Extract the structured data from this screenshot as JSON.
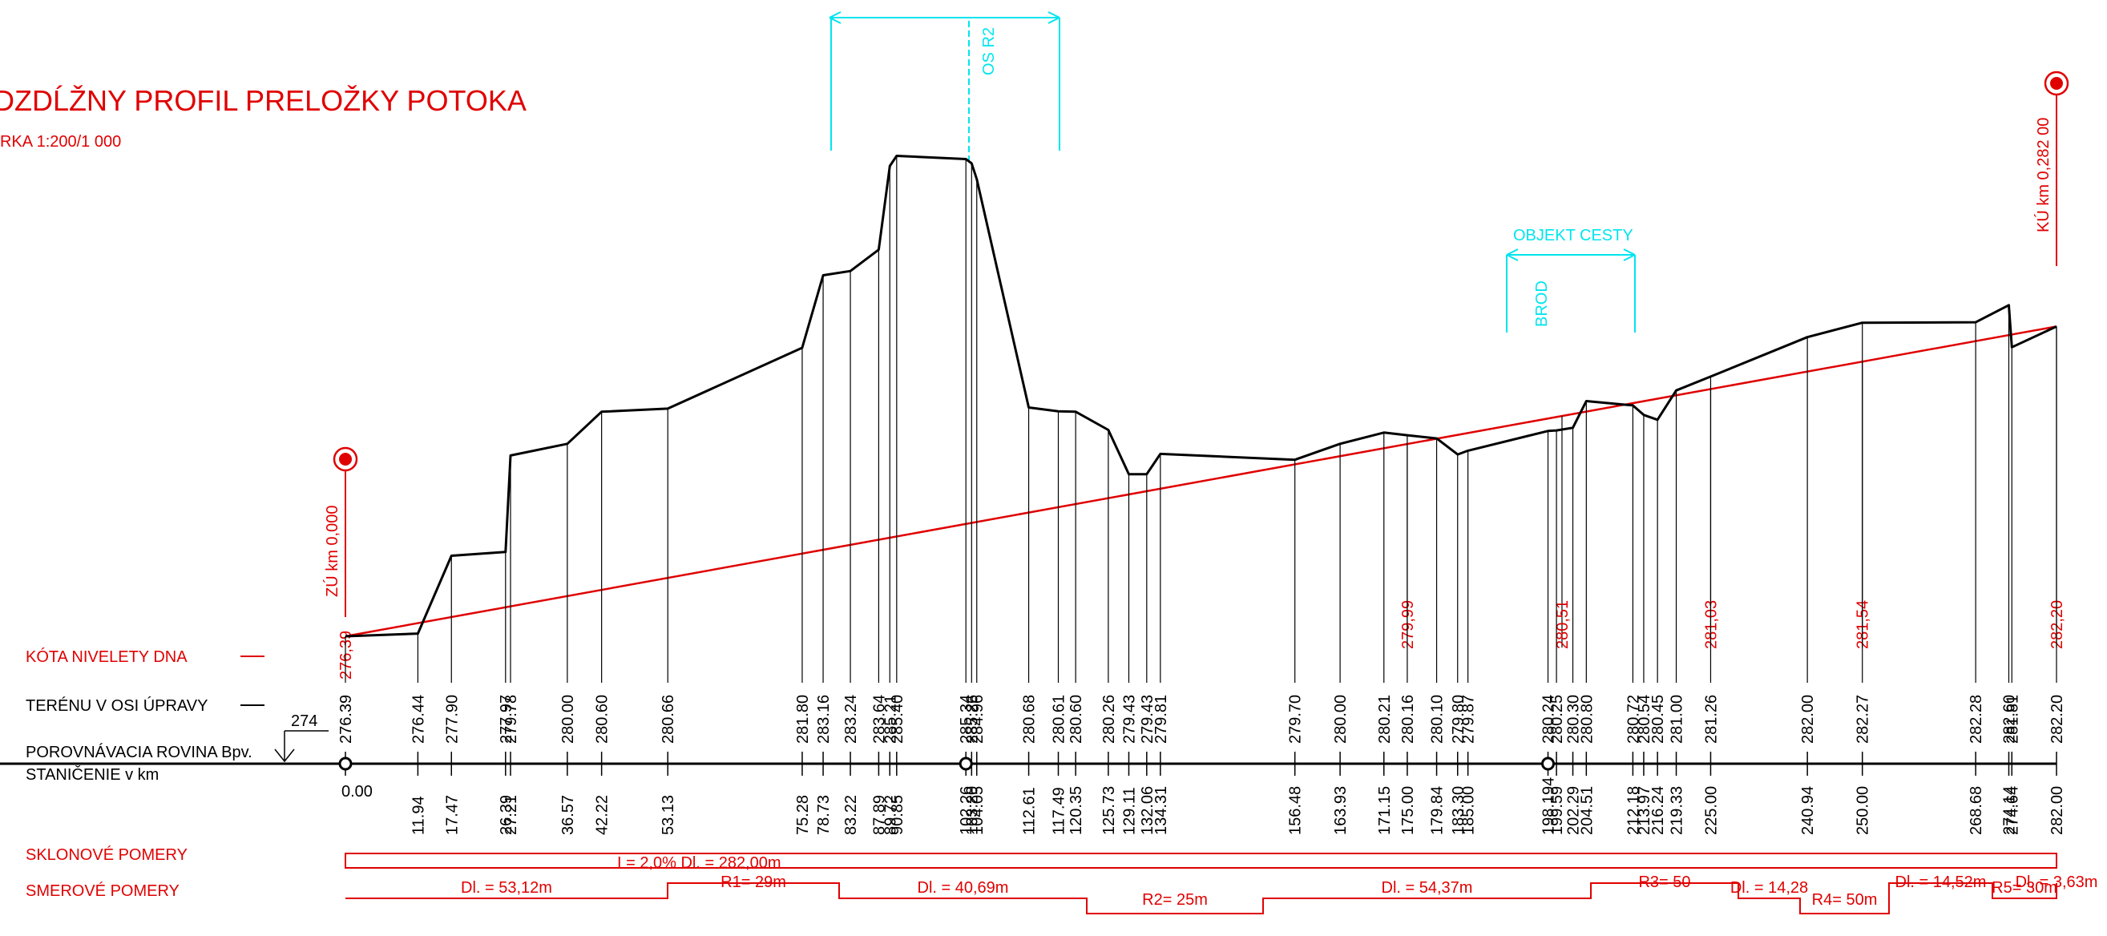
{
  "title": "DZDĹŽNY PROFIL PRELOŽKY POTOKA",
  "scale": "RKA 1:200/1 000",
  "colors": {
    "terrain": "#000000",
    "niveleta": "#e00000",
    "text_red": "#e00000",
    "annotation": "#00e5ee"
  },
  "annotations": {
    "os_r2": "OS R2",
    "objekt_cesty": "OBJEKT CESTY",
    "brod": "BROD",
    "start_point": "ZÚ km 0,000",
    "end_point": "KÚ km 0,282 00"
  },
  "datum": "274",
  "band_labels": {
    "niveleta": "KÓTA NIVELETY DNA",
    "terrain": "TERÉNU V OSI ÚPRAVY",
    "datum": "POROVNÁVACIA ROVINA Bpv.",
    "stationing": "STANIČENIE v km",
    "slope": "SKLONOVÉ POMERY",
    "direction": "SMEROVÉ POMERY"
  },
  "slope_text": "I = 2,0%  Dl. = 282,00m",
  "direction_segments": [
    {
      "label": "Dl. = 53,12m",
      "level": "mid"
    },
    {
      "label": "R1= 29m",
      "level": "high"
    },
    {
      "label": "Dl. = 40,69m",
      "level": "mid"
    },
    {
      "label": "R2= 25m",
      "level": "low"
    },
    {
      "label": "Dl. = 54,37m",
      "level": "mid"
    },
    {
      "label": "R3= 50",
      "level": "high"
    },
    {
      "label": "Dl. = 14,28",
      "level": "mid"
    },
    {
      "label": "R4= 50m",
      "level": "low"
    },
    {
      "label": "Dl. = 14,52m",
      "level": "high"
    },
    {
      "label": "R5= 30m",
      "level": "mid"
    },
    {
      "label": "Dl. = 3,63m",
      "level": "high"
    }
  ],
  "chart_data": {
    "type": "line",
    "x": [
      "0.00",
      "11.94",
      "17.47",
      "26.39",
      "27.21",
      "36.57",
      "42.22",
      "53.13",
      "75.28",
      "78.73",
      "83.22",
      "87.89",
      "89.72",
      "90.85",
      "102.26",
      "103.20",
      "104.05",
      "112.61",
      "117.49",
      "120.35",
      "125.73",
      "129.11",
      "132.06",
      "134.31",
      "156.48",
      "163.93",
      "171.15",
      "175.00",
      "179.84",
      "183.30",
      "185.00",
      "198.194",
      "199.59",
      "202.29",
      "204.51",
      "212.18",
      "213.97",
      "216.24",
      "219.33",
      "225.00",
      "240.94",
      "250.00",
      "268.68",
      "274.14",
      "274.64",
      "282.00"
    ],
    "terrain": [
      "276.39",
      "276.44",
      "277.90",
      "277.97",
      "279.78",
      "280.00",
      "280.60",
      "280.66",
      "281.80",
      "283.16",
      "283.24",
      "283.64",
      "285.21",
      "285.40",
      "285.34",
      "285.26",
      "284.96",
      "280.68",
      "280.61",
      "280.60",
      "280.26",
      "279.43",
      "279.43",
      "279.81",
      "279.70",
      "280.00",
      "280.21",
      "280.16",
      "280.10",
      "279.80",
      "279.87",
      "280.24",
      "280.25",
      "280.30",
      "280.80",
      "280.72",
      "280.54",
      "280.45",
      "281.00",
      "281.26",
      "282.00",
      "282.27",
      "282.28",
      "282.60",
      "281.81",
      "282.20"
    ],
    "niveleta_start": "276,39",
    "niveleta_labels": [
      {
        "x": 175.0,
        "value": "279,99"
      },
      {
        "x": 200.5,
        "value": "280,51"
      },
      {
        "x": 225.0,
        "value": "281,03"
      },
      {
        "x": 250.0,
        "value": "281,54"
      },
      {
        "x": 282.0,
        "value": "282,20"
      }
    ],
    "xlim": [
      0,
      282
    ],
    "ylim": [
      274,
      287
    ]
  }
}
